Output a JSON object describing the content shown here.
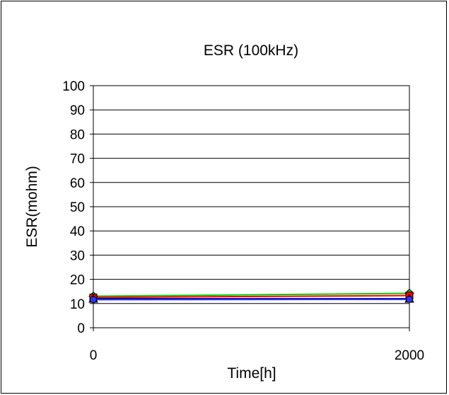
{
  "chart_data": {
    "type": "line",
    "title": "ESR (100kHz)",
    "xlabel": "Time[h]",
    "ylabel": "ESR(mohm)",
    "x": [
      0,
      2000
    ],
    "x_ticks": [
      "0",
      "2000"
    ],
    "ylim": [
      0,
      100
    ],
    "y_ticks": [
      "0",
      "10",
      "20",
      "30",
      "40",
      "50",
      "60",
      "70",
      "80",
      "90",
      "100"
    ],
    "grid": "horizontal",
    "legend": "none",
    "series": [
      {
        "color": "#00cc00",
        "marker": "diamond",
        "values": [
          13.0,
          14.2
        ]
      },
      {
        "color": "#ff0000",
        "marker": "square",
        "values": [
          12.5,
          13.3
        ]
      },
      {
        "color": "#000080",
        "marker": "triangle",
        "values": [
          12.0,
          12.0
        ]
      },
      {
        "color": "#3333ff",
        "marker": "circle",
        "values": [
          11.6,
          11.7
        ]
      }
    ]
  }
}
